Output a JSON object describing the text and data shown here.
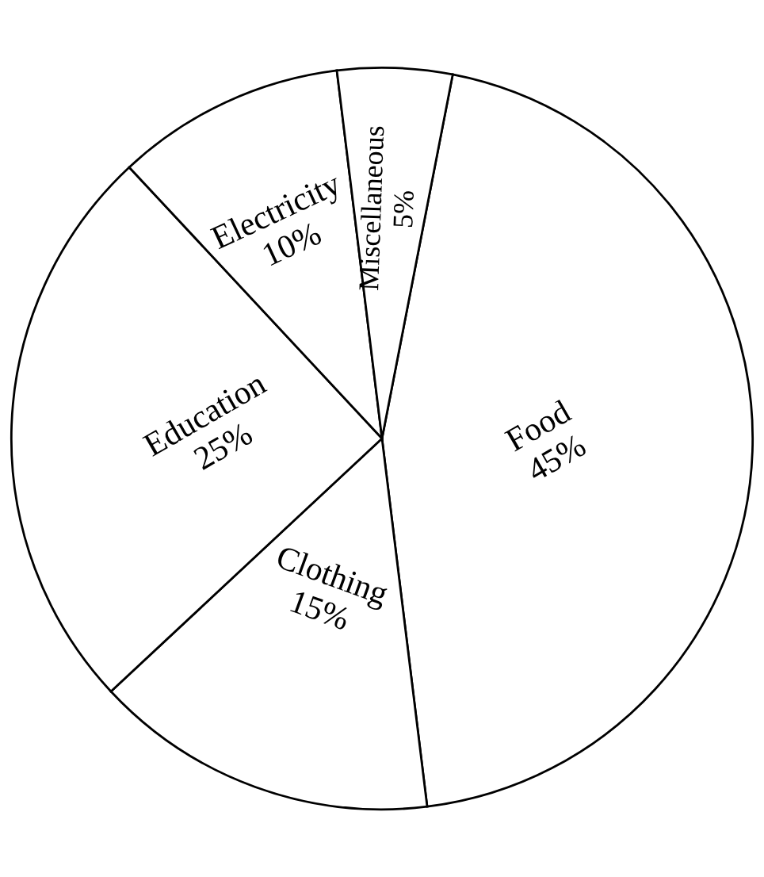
{
  "chart_data": {
    "type": "pie",
    "categories": [
      "Food",
      "Clothing",
      "Education",
      "Electricity",
      "Miscellaneous"
    ],
    "values": [
      45,
      15,
      25,
      10,
      5
    ],
    "value_labels": [
      "45%",
      "15%",
      "25%",
      "10%",
      "5%"
    ],
    "colors": [
      "#ffffff",
      "#ffffff",
      "#ffffff",
      "#ffffff",
      "#ffffff"
    ],
    "legend": false
  }
}
